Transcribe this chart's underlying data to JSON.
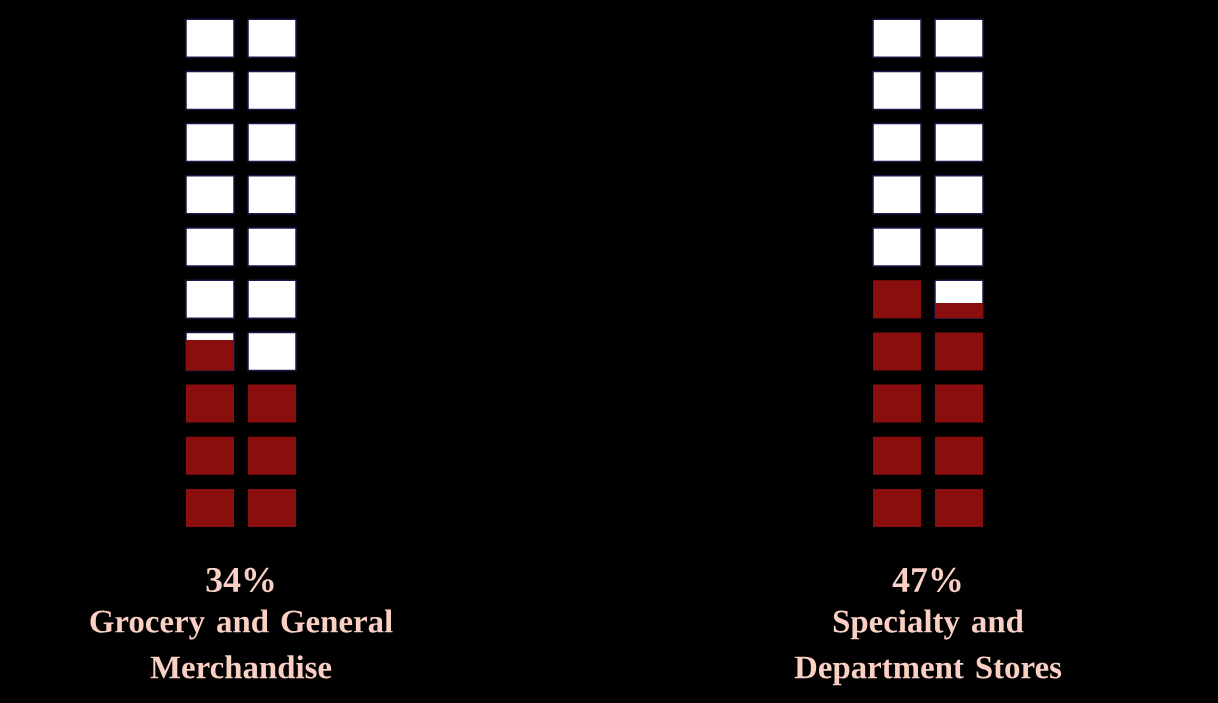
{
  "chart_data": {
    "type": "other",
    "categories": [
      "Grocery and General Merchandise",
      "Specialty and Department Stores"
    ],
    "values": [
      34,
      47
    ],
    "value_labels": [
      "34%",
      "47%"
    ],
    "colors": [
      "#8b0e0e",
      "#8b0e0e"
    ]
  }
}
